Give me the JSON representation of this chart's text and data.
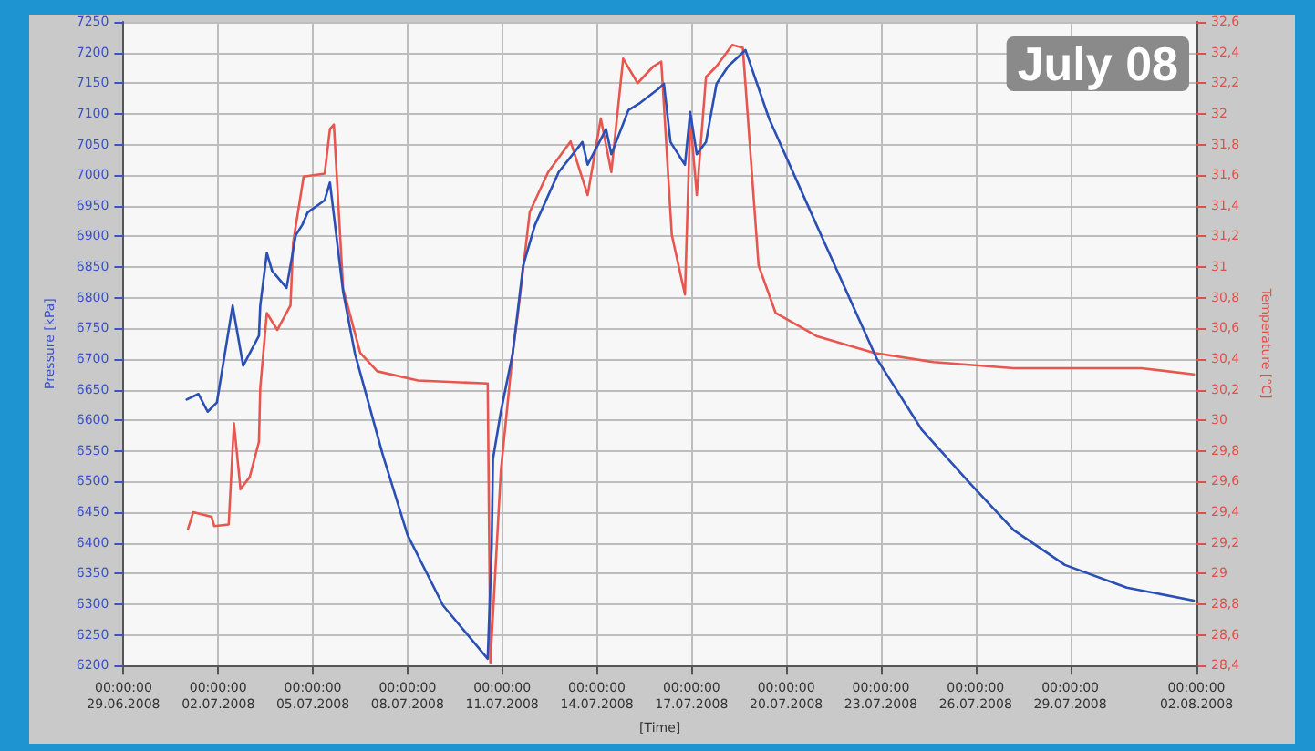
{
  "chart_data": {
    "type": "line",
    "xlabel": "[Time]",
    "ylabel": "Pressure [kPa]",
    "y2label": "Temperature [°C]",
    "annotations": [
      "July 08"
    ],
    "grid": true,
    "marker": "none",
    "line_style": "solid",
    "xlim": [
      "2008-06-29",
      "2008-08-02"
    ],
    "xticks": [
      {
        "value": "2008-06-29",
        "label": "00:00:00\n29.06.2008"
      },
      {
        "value": "2008-07-02",
        "label": "00:00:00\n02.07.2008"
      },
      {
        "value": "2008-07-05",
        "label": "00:00:00\n05.07.2008"
      },
      {
        "value": "2008-07-08",
        "label": "00:00:00\n08.07.2008"
      },
      {
        "value": "2008-07-11",
        "label": "00:00:00\n11.07.2008"
      },
      {
        "value": "2008-07-14",
        "label": "00:00:00\n14.07.2008"
      },
      {
        "value": "2008-07-17",
        "label": "00:00:00\n17.07.2008"
      },
      {
        "value": "2008-07-20",
        "label": "00:00:00\n20.07.2008"
      },
      {
        "value": "2008-07-23",
        "label": "00:00:00\n23.07.2008"
      },
      {
        "value": "2008-07-26",
        "label": "00:00:00\n26.07.2008"
      },
      {
        "value": "2008-07-29",
        "label": "00:00:00\n29.07.2008"
      },
      {
        "value": "2008-08-02",
        "label": "00:00:00\n02.08.2008"
      }
    ],
    "ylim": [
      6200,
      7250
    ],
    "yticks": [
      6200,
      6250,
      6300,
      6350,
      6400,
      6450,
      6500,
      6550,
      6600,
      6650,
      6700,
      6750,
      6800,
      6850,
      6900,
      6950,
      7000,
      7050,
      7100,
      7150,
      7200,
      7250
    ],
    "y2lim": [
      28.4,
      32.6
    ],
    "y2ticks": [
      {
        "value": 28.4,
        "label": "28,4"
      },
      {
        "value": 28.6,
        "label": "28,6"
      },
      {
        "value": 28.8,
        "label": "28,8"
      },
      {
        "value": 29,
        "label": "29"
      },
      {
        "value": 29.2,
        "label": "29,2"
      },
      {
        "value": 29.4,
        "label": "29,4"
      },
      {
        "value": 29.6,
        "label": "29,6"
      },
      {
        "value": 29.8,
        "label": "29,8"
      },
      {
        "value": 30,
        "label": "30"
      },
      {
        "value": 30.2,
        "label": "30,2"
      },
      {
        "value": 30.4,
        "label": "30,4"
      },
      {
        "value": 30.6,
        "label": "30,6"
      },
      {
        "value": 30.8,
        "label": "30,8"
      },
      {
        "value": 31,
        "label": "31"
      },
      {
        "value": 31.2,
        "label": "31,2"
      },
      {
        "value": 31.4,
        "label": "31,4"
      },
      {
        "value": 31.6,
        "label": "31,6"
      },
      {
        "value": 31.8,
        "label": "31,8"
      },
      {
        "value": 32,
        "label": "32"
      },
      {
        "value": 32.2,
        "label": "32,2"
      },
      {
        "value": 32.4,
        "label": "32,4"
      },
      {
        "value": 32.6,
        "label": "32,6"
      }
    ],
    "series": [
      {
        "color": "#e8574f",
        "axis": "y2",
        "x": [
          "2008-07-01T01:00",
          "2008-07-01T05:00",
          "2008-07-01T19:00",
          "2008-07-01T21:00",
          "2008-07-02T08:00",
          "2008-07-02T12:00",
          "2008-07-02T17:00",
          "2008-07-03T00:00",
          "2008-07-03T07:00",
          "2008-07-03T08:00",
          "2008-07-03T13:00",
          "2008-07-03T21:00",
          "2008-07-04T07:00",
          "2008-07-04T09:00",
          "2008-07-04T17:00",
          "2008-07-05T09:00",
          "2008-07-05T13:00",
          "2008-07-05T16:00",
          "2008-07-05T23:00",
          "2008-07-06T12:00",
          "2008-07-07T01:00",
          "2008-07-08T08:00",
          "2008-07-10T13:00",
          "2008-07-10T15:00",
          "2008-07-10T23:00",
          "2008-07-11T08:00",
          "2008-07-11T12:00",
          "2008-07-11T21:00",
          "2008-07-12T11:00",
          "2008-07-13T04:00",
          "2008-07-13T17:00",
          "2008-07-14T03:00",
          "2008-07-14T11:00",
          "2008-07-14T20:00",
          "2008-07-15T07:00",
          "2008-07-15T19:00",
          "2008-07-16T01:00",
          "2008-07-16T09:00",
          "2008-07-16T19:00",
          "2008-07-16T23:00",
          "2008-07-17T04:00",
          "2008-07-17T11:00",
          "2008-07-17T19:00",
          "2008-07-18T07:00",
          "2008-07-18T15:00",
          "2008-07-19T03:00",
          "2008-07-19T16:00",
          "2008-07-20T23:00",
          "2008-07-22T19:00",
          "2008-07-24T16:00",
          "2008-07-27T05:00",
          "2008-07-31T06:00",
          "2008-08-01T22:00"
        ],
        "values": [
          29.29,
          29.4,
          29.37,
          29.31,
          29.32,
          29.98,
          29.55,
          29.63,
          29.86,
          30.21,
          30.7,
          30.59,
          30.75,
          31.16,
          31.59,
          31.61,
          31.9,
          31.93,
          30.86,
          30.44,
          30.32,
          30.26,
          30.24,
          28.42,
          29.67,
          30.44,
          30.7,
          31.36,
          31.62,
          31.82,
          31.47,
          31.97,
          31.62,
          32.36,
          32.2,
          32.31,
          32.34,
          31.21,
          30.82,
          31.97,
          31.47,
          32.24,
          32.31,
          32.45,
          32.43,
          31.01,
          30.7,
          30.55,
          30.44,
          30.38,
          30.34,
          30.34,
          30.3
        ]
      },
      {
        "color": "#2a4fb5",
        "x": [
          "2008-07-01T00:00",
          "2008-07-01T09:00",
          "2008-07-01T16:00",
          "2008-07-01T23:00",
          "2008-07-02T11:00",
          "2008-07-02T19:00",
          "2008-07-03T07:00",
          "2008-07-03T08:00",
          "2008-07-03T13:00",
          "2008-07-03T17:00",
          "2008-07-04T04:00",
          "2008-07-04T11:00",
          "2008-07-04T16:00",
          "2008-07-04T20:00",
          "2008-07-05T09:00",
          "2008-07-05T13:00",
          "2008-07-05T23:00",
          "2008-07-06T08:00",
          "2008-07-07T05:00",
          "2008-07-08T00:00",
          "2008-07-09T03:00",
          "2008-07-10T13:00",
          "2008-07-10T16:00",
          "2008-07-10T17:00",
          "2008-07-10T23:00",
          "2008-07-11T08:00",
          "2008-07-11T16:00",
          "2008-07-12T01:00",
          "2008-07-12T19:00",
          "2008-07-13T13:00",
          "2008-07-13T17:00",
          "2008-07-14T07:00",
          "2008-07-14T11:00",
          "2008-07-15T00:00",
          "2008-07-15T09:00",
          "2008-07-15T23:00",
          "2008-07-16T03:00",
          "2008-07-16T08:00",
          "2008-07-16T19:00",
          "2008-07-16T23:00",
          "2008-07-17T04:00",
          "2008-07-17T11:00",
          "2008-07-17T19:00",
          "2008-07-18T04:00",
          "2008-07-18T17:00",
          "2008-07-19T11:00",
          "2008-07-20T23:00",
          "2008-07-22T21:00",
          "2008-07-24T07:00",
          "2008-07-25T19:00",
          "2008-07-27T05:00",
          "2008-07-28T20:00",
          "2008-07-30T19:00",
          "2008-08-01T22:00"
        ],
        "values": [
          6634,
          6643,
          6614,
          6629,
          6787,
          6689,
          6738,
          6787,
          6873,
          6844,
          6816,
          6902,
          6919,
          6939,
          6959,
          6988,
          6810,
          6709,
          6545,
          6413,
          6298,
          6211,
          6393,
          6537,
          6614,
          6709,
          6853,
          6919,
          7005,
          7054,
          7017,
          7075,
          7034,
          7106,
          7118,
          7141,
          7149,
          7054,
          7017,
          7103,
          7034,
          7054,
          7149,
          7178,
          7204,
          7092,
          6919,
          6700,
          6585,
          6499,
          6421,
          6364,
          6327,
          6306
        ]
      }
    ]
  }
}
